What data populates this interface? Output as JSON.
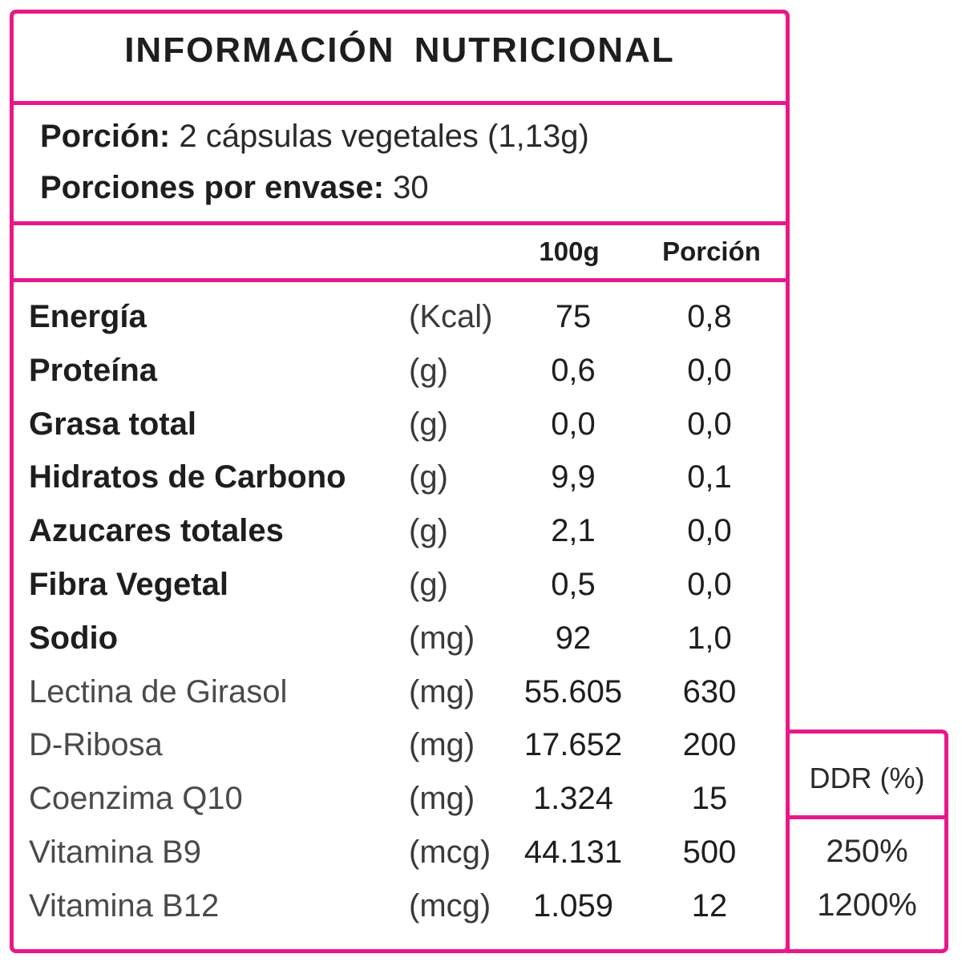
{
  "title": "INFORMACIÓN NUTRICIONAL",
  "serving": {
    "label": "Porción:",
    "value": "2 cápsulas vegetales (1,13g)"
  },
  "servings_per_container": {
    "label": "Porciones por envase:",
    "value": "30"
  },
  "columns": {
    "per100": "100g",
    "portion": "Porción",
    "ddr": "DDR (%)"
  },
  "border_color": "#e8178a",
  "rows": [
    {
      "name": "Energía",
      "unit": "(Kcal)",
      "per100": "75",
      "portion": "0,8",
      "bold": true
    },
    {
      "name": "Proteína",
      "unit": "(g)",
      "per100": "0,6",
      "portion": "0,0",
      "bold": true
    },
    {
      "name": "Grasa total",
      "unit": "(g)",
      "per100": "0,0",
      "portion": "0,0",
      "bold": true
    },
    {
      "name": "Hidratos de Carbono",
      "unit": "(g)",
      "per100": "9,9",
      "portion": "0,1",
      "bold": true
    },
    {
      "name": "Azucares totales",
      "unit": "(g)",
      "per100": "2,1",
      "portion": "0,0",
      "bold": true
    },
    {
      "name": "Fibra Vegetal",
      "unit": "(g)",
      "per100": "0,5",
      "portion": "0,0",
      "bold": true
    },
    {
      "name": "Sodio",
      "unit": "(mg)",
      "per100": "92",
      "portion": "1,0",
      "bold": true
    },
    {
      "name": "Lectina de Girasol",
      "unit": "(mg)",
      "per100": "55.605",
      "portion": "630",
      "bold": false
    },
    {
      "name": "D-Ribosa",
      "unit": "(mg)",
      "per100": "17.652",
      "portion": "200",
      "bold": false
    },
    {
      "name": "Coenzima Q10",
      "unit": "(mg)",
      "per100": "1.324",
      "portion": "15",
      "bold": false
    },
    {
      "name": "Vitamina B9",
      "unit": "(mcg)",
      "per100": "44.131",
      "portion": "500",
      "bold": false,
      "ddr": "250%"
    },
    {
      "name": "Vitamina B12",
      "unit": "(mcg)",
      "per100": "1.059",
      "portion": "12",
      "bold": false,
      "ddr": "1200%"
    }
  ]
}
